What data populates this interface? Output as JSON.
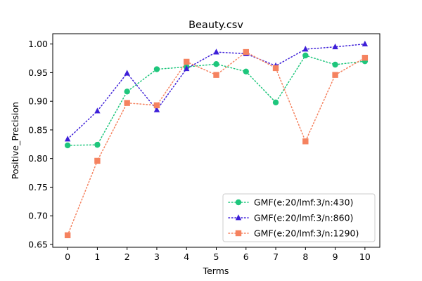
{
  "chart_data": {
    "type": "line",
    "title": "Beauty.csv",
    "xlabel": "Terms",
    "ylabel": "Positive_Precision",
    "x": [
      0,
      1,
      2,
      3,
      4,
      5,
      6,
      7,
      8,
      9,
      10
    ],
    "xticks": [
      "0",
      "1",
      "2",
      "3",
      "4",
      "5",
      "6",
      "7",
      "8",
      "9",
      "10"
    ],
    "yticks": [
      "0.65",
      "0.70",
      "0.75",
      "0.80",
      "0.85",
      "0.90",
      "0.95",
      "1.00"
    ],
    "xlim": [
      -0.5,
      10.5
    ],
    "ylim": [
      0.645,
      1.018
    ],
    "grid": false,
    "legend_position": "lower-right",
    "series": [
      {
        "name": "GMF(e:20/lmf:3/n:430)",
        "marker": "circle",
        "color": "#1ec67c",
        "values": [
          0.823,
          0.824,
          0.917,
          0.956,
          0.96,
          0.965,
          0.952,
          0.898,
          0.98,
          0.964,
          0.97
        ]
      },
      {
        "name": "GMF(e:20/lmf:3/n:860)",
        "marker": "triangle",
        "color": "#3d1fd8",
        "values": [
          0.834,
          0.883,
          0.949,
          0.885,
          0.957,
          0.986,
          0.983,
          0.962,
          0.991,
          0.995,
          1.0
        ]
      },
      {
        "name": "GMF(e:20/lmf:3/n:1290)",
        "marker": "square",
        "color": "#f5825f",
        "values": [
          0.666,
          0.796,
          0.897,
          0.893,
          0.969,
          0.946,
          0.986,
          0.958,
          0.83,
          0.946,
          0.976
        ]
      }
    ]
  }
}
